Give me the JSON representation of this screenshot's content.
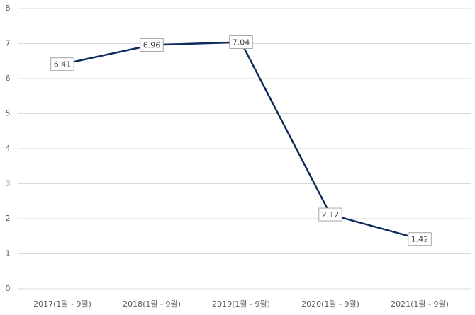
{
  "chart_data": {
    "type": "line",
    "categories": [
      "2017(1월 - 9월)",
      "2018(1월 - 9월)",
      "2019(1월 - 9월)",
      "2020(1월 - 9월)",
      "2021(1월 - 9월)"
    ],
    "series": [
      {
        "color": "#0e2a5a",
        "values": [
          6.41,
          6.96,
          7.04,
          2.12,
          1.42
        ]
      }
    ],
    "ylim": [
      0,
      8
    ],
    "yticks": [
      0,
      1,
      2,
      3,
      4,
      5,
      6,
      7,
      8
    ],
    "grid": true,
    "data_labels": true
  }
}
